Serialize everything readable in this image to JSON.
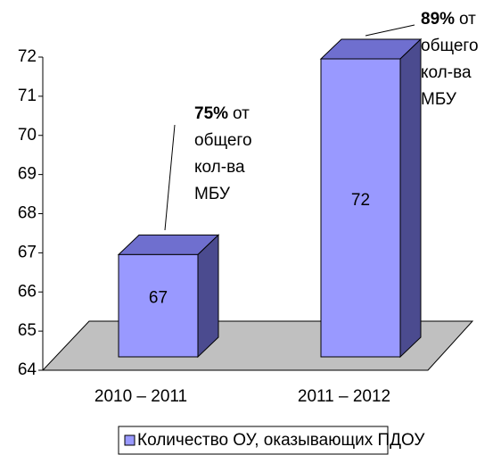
{
  "chart_data": {
    "type": "bar3d",
    "categories": [
      "2010 – 2011",
      "2011 – 2012"
    ],
    "series": [
      {
        "name": "Количество ОУ, оказывающих ПДОУ",
        "color": "#9999ff",
        "values": [
          67,
          72
        ]
      }
    ],
    "ylim": [
      64,
      72
    ],
    "yticks": [
      64,
      65,
      66,
      67,
      68,
      69,
      70,
      71,
      72
    ],
    "annotations": [
      {
        "bold": "75%",
        "lines": [
          "от",
          "общего",
          "кол-ва",
          "МБУ"
        ]
      },
      {
        "bold": "89%",
        "lines": [
          "от",
          "общего",
          "кол-ва",
          "МБУ"
        ]
      }
    ],
    "legend": "bottom"
  }
}
